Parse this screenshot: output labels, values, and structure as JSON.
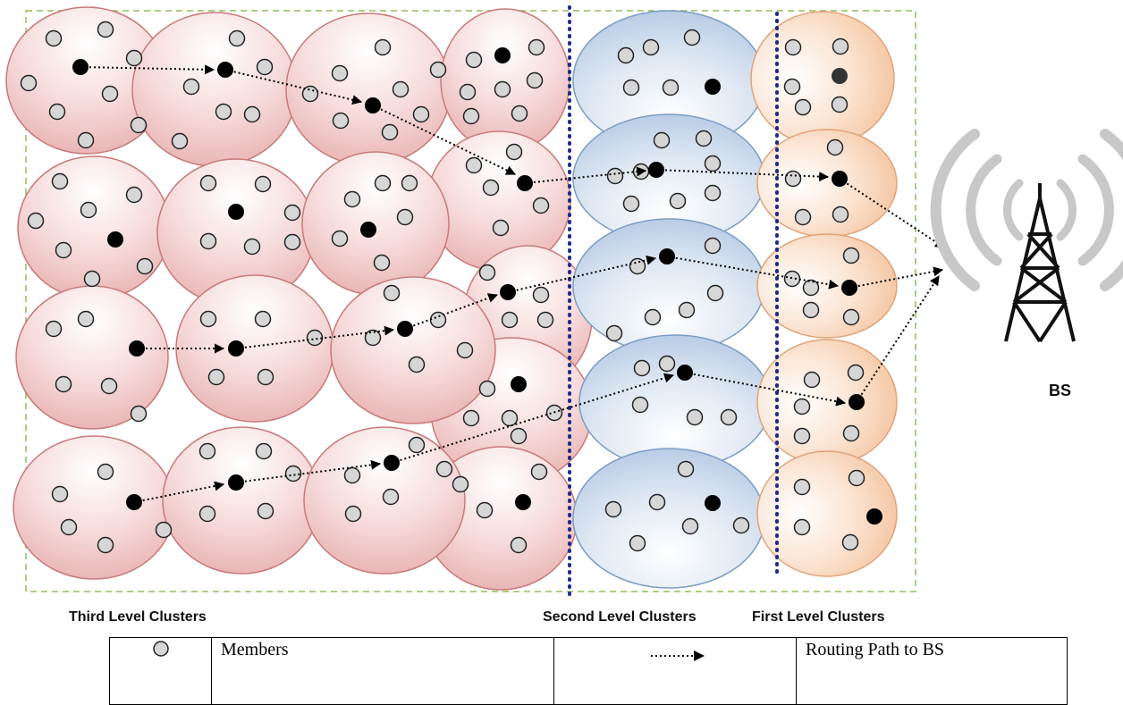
{
  "labels": {
    "third_level": "Third Level Clusters",
    "second_level": "Second Level Clusters",
    "first_level": "First Level Clusters",
    "bs": "BS"
  },
  "legend": {
    "members": "Members",
    "routing": "Routing Path to BS"
  },
  "colors": {
    "third_level_fill": "#f2c4c4",
    "third_level_stroke": "#c97a7a",
    "second_level_fill": "#c9d8ea",
    "second_level_stroke": "#7b9cc4",
    "first_level_fill": "#f8d3b8",
    "first_level_stroke": "#e0a37a",
    "member_fill": "#d6d6d6",
    "cluster_head": "#000000",
    "boundary_dotted": "#1f2a8a",
    "field_border": "#8fbf5a",
    "tower_waves": "#bdbdbd"
  }
}
